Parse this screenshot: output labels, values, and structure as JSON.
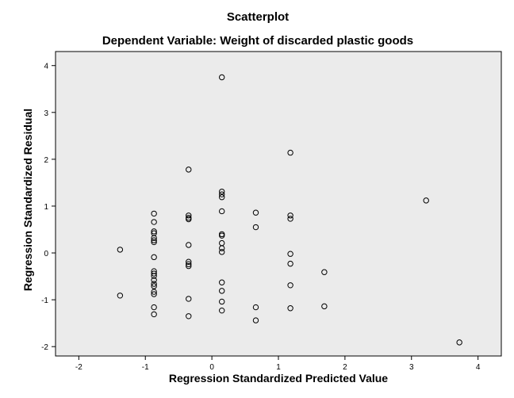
{
  "chart_data": {
    "type": "scatter",
    "title": "Scatterplot",
    "subtitle": "Dependent Variable: Weight of discarded plastic goods",
    "xlabel": "Regression Standardized Predicted Value",
    "ylabel": "Regression Standardized Residual",
    "xlim": [
      -2.35,
      4.35
    ],
    "ylim": [
      -2.2,
      4.3
    ],
    "xticks": [
      -2,
      -1,
      0,
      1,
      2,
      3,
      4
    ],
    "yticks": [
      -2,
      -1,
      0,
      1,
      2,
      3,
      4
    ],
    "grid": false,
    "plot_background": "#ebebeb",
    "marker": "open-circle",
    "marker_color": "#000000",
    "points": [
      {
        "x": 0.15,
        "y": 3.75
      },
      {
        "x": 1.18,
        "y": 2.14
      },
      {
        "x": -0.35,
        "y": 1.78
      },
      {
        "x": 0.15,
        "y": 1.31
      },
      {
        "x": 0.15,
        "y": 1.25
      },
      {
        "x": 0.15,
        "y": 1.19
      },
      {
        "x": 3.22,
        "y": 1.12
      },
      {
        "x": 0.15,
        "y": 0.89
      },
      {
        "x": 0.66,
        "y": 0.86
      },
      {
        "x": -0.87,
        "y": 0.84
      },
      {
        "x": -0.35,
        "y": 0.8
      },
      {
        "x": 1.18,
        "y": 0.8
      },
      {
        "x": -0.35,
        "y": 0.75
      },
      {
        "x": -0.35,
        "y": 0.72
      },
      {
        "x": 1.18,
        "y": 0.73
      },
      {
        "x": -0.87,
        "y": 0.66
      },
      {
        "x": 0.66,
        "y": 0.55
      },
      {
        "x": -0.87,
        "y": 0.46
      },
      {
        "x": -0.87,
        "y": 0.42
      },
      {
        "x": 0.15,
        "y": 0.4
      },
      {
        "x": 0.15,
        "y": 0.37
      },
      {
        "x": -0.87,
        "y": 0.32
      },
      {
        "x": -0.87,
        "y": 0.27
      },
      {
        "x": -0.87,
        "y": 0.23
      },
      {
        "x": 0.15,
        "y": 0.21
      },
      {
        "x": -0.35,
        "y": 0.17
      },
      {
        "x": 0.15,
        "y": 0.1
      },
      {
        "x": -1.38,
        "y": 0.07
      },
      {
        "x": 0.15,
        "y": 0.02
      },
      {
        "x": 1.18,
        "y": -0.02
      },
      {
        "x": -0.87,
        "y": -0.09
      },
      {
        "x": -0.35,
        "y": -0.19
      },
      {
        "x": -0.35,
        "y": -0.24
      },
      {
        "x": 1.18,
        "y": -0.23
      },
      {
        "x": -0.35,
        "y": -0.28
      },
      {
        "x": -0.87,
        "y": -0.39
      },
      {
        "x": -0.87,
        "y": -0.44
      },
      {
        "x": 1.69,
        "y": -0.41
      },
      {
        "x": -0.87,
        "y": -0.49
      },
      {
        "x": -0.87,
        "y": -0.58
      },
      {
        "x": 0.15,
        "y": -0.63
      },
      {
        "x": -0.87,
        "y": -0.66
      },
      {
        "x": -0.87,
        "y": -0.71
      },
      {
        "x": 1.18,
        "y": -0.69
      },
      {
        "x": 0.15,
        "y": -0.81
      },
      {
        "x": -0.87,
        "y": -0.83
      },
      {
        "x": -0.87,
        "y": -0.88
      },
      {
        "x": -1.38,
        "y": -0.91
      },
      {
        "x": -0.35,
        "y": -0.98
      },
      {
        "x": 0.15,
        "y": -1.04
      },
      {
        "x": 1.69,
        "y": -1.14
      },
      {
        "x": -0.87,
        "y": -1.16
      },
      {
        "x": 0.66,
        "y": -1.16
      },
      {
        "x": 1.18,
        "y": -1.18
      },
      {
        "x": 0.15,
        "y": -1.23
      },
      {
        "x": -0.87,
        "y": -1.31
      },
      {
        "x": -0.35,
        "y": -1.35
      },
      {
        "x": 0.66,
        "y": -1.44
      },
      {
        "x": 3.72,
        "y": -1.91
      }
    ]
  }
}
